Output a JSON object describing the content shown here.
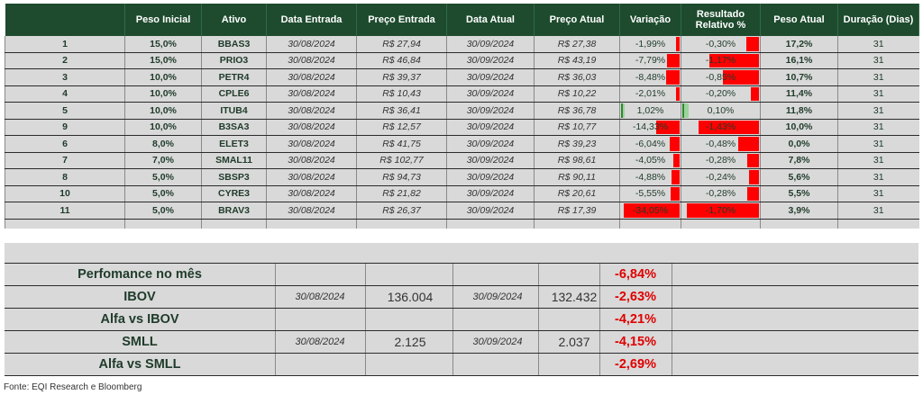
{
  "table": {
    "headers": {
      "idx": "",
      "peso_inicial": "Peso Inicial",
      "ativo": "Ativo",
      "data_entrada": "Data Entrada",
      "preco_entrada": "Preço Entrada",
      "data_atual": "Data Atual",
      "preco_atual": "Preço Atual",
      "variacao": "Variação",
      "resultado": "Resultado Relativo %",
      "peso_atual": "Peso Atual",
      "duracao": "Duração (Dias)"
    },
    "rows": [
      {
        "idx": "1",
        "peso_inicial": "15,0%",
        "ativo": "BBAS3",
        "data_entrada": "30/08/2024",
        "preco_entrada": "R$ 27,94",
        "data_atual": "30/09/2024",
        "preco_atual": "R$ 27,38",
        "variacao": "-1,99%",
        "variacao_value": -1.99,
        "resultado": "-0,30%",
        "resultado_value": -0.3,
        "peso_atual": "17,2%",
        "duracao": "31"
      },
      {
        "idx": "2",
        "peso_inicial": "15,0%",
        "ativo": "PRIO3",
        "data_entrada": "30/08/2024",
        "preco_entrada": "R$ 46,84",
        "data_atual": "30/09/2024",
        "preco_atual": "R$ 43,19",
        "variacao": "-7,79%",
        "variacao_value": -7.79,
        "resultado": "-1,17%",
        "resultado_value": -1.17,
        "peso_atual": "16,1%",
        "duracao": "31"
      },
      {
        "idx": "3",
        "peso_inicial": "10,0%",
        "ativo": "PETR4",
        "data_entrada": "30/08/2024",
        "preco_entrada": "R$ 39,37",
        "data_atual": "30/09/2024",
        "preco_atual": "R$ 36,03",
        "variacao": "-8,48%",
        "variacao_value": -8.48,
        "resultado": "-0,85%",
        "resultado_value": -0.85,
        "peso_atual": "10,7%",
        "duracao": "31"
      },
      {
        "idx": "4",
        "peso_inicial": "10,0%",
        "ativo": "CPLE6",
        "data_entrada": "30/08/2024",
        "preco_entrada": "R$ 10,43",
        "data_atual": "30/09/2024",
        "preco_atual": "R$ 10,22",
        "variacao": "-2,01%",
        "variacao_value": -2.01,
        "resultado": "-0,20%",
        "resultado_value": -0.2,
        "peso_atual": "11,4%",
        "duracao": "31"
      },
      {
        "idx": "5",
        "peso_inicial": "10,0%",
        "ativo": "ITUB4",
        "data_entrada": "30/08/2024",
        "preco_entrada": "R$ 36,41",
        "data_atual": "30/09/2024",
        "preco_atual": "R$ 36,78",
        "variacao": "1,02%",
        "variacao_value": 1.02,
        "resultado": "0,10%",
        "resultado_value": 0.1,
        "peso_atual": "11,8%",
        "duracao": "31"
      },
      {
        "idx": "9",
        "peso_inicial": "10,0%",
        "ativo": "B3SA3",
        "data_entrada": "30/08/2024",
        "preco_entrada": "R$ 12,57",
        "data_atual": "30/09/2024",
        "preco_atual": "R$ 10,77",
        "variacao": "-14,33%",
        "variacao_value": -14.33,
        "resultado": "-1,43%",
        "resultado_value": -1.43,
        "peso_atual": "10,0%",
        "duracao": "31"
      },
      {
        "idx": "6",
        "peso_inicial": "8,0%",
        "ativo": "ELET3",
        "data_entrada": "30/08/2024",
        "preco_entrada": "R$ 41,75",
        "data_atual": "30/09/2024",
        "preco_atual": "R$ 39,23",
        "variacao": "-6,04%",
        "variacao_value": -6.04,
        "resultado": "-0,48%",
        "resultado_value": -0.48,
        "peso_atual": "0,0%",
        "duracao": "31"
      },
      {
        "idx": "7",
        "peso_inicial": "7,0%",
        "ativo": "SMAL11",
        "data_entrada": "30/08/2024",
        "preco_entrada": "R$ 102,77",
        "data_atual": "30/09/2024",
        "preco_atual": "R$ 98,61",
        "variacao": "-4,05%",
        "variacao_value": -4.05,
        "resultado": "-0,28%",
        "resultado_value": -0.28,
        "peso_atual": "7,8%",
        "duracao": "31"
      },
      {
        "idx": "8",
        "peso_inicial": "5,0%",
        "ativo": "SBSP3",
        "data_entrada": "30/08/2024",
        "preco_entrada": "R$ 94,73",
        "data_atual": "30/09/2024",
        "preco_atual": "R$ 90,11",
        "variacao": "-4,88%",
        "variacao_value": -4.88,
        "resultado": "-0,24%",
        "resultado_value": -0.24,
        "peso_atual": "5,6%",
        "duracao": "31"
      },
      {
        "idx": "10",
        "peso_inicial": "5,0%",
        "ativo": "CYRE3",
        "data_entrada": "30/08/2024",
        "preco_entrada": "R$ 21,82",
        "data_atual": "30/09/2024",
        "preco_atual": "R$ 20,61",
        "variacao": "-5,55%",
        "variacao_value": -5.55,
        "resultado": "-0,28%",
        "resultado_value": -0.28,
        "peso_atual": "5,5%",
        "duracao": "31"
      },
      {
        "idx": "11",
        "peso_inicial": "5,0%",
        "ativo": "BRAV3",
        "data_entrada": "30/08/2024",
        "preco_entrada": "R$ 26,37",
        "data_atual": "30/09/2024",
        "preco_atual": "R$ 17,39",
        "variacao": "-34,05%",
        "variacao_value": -34.05,
        "resultado": "-1,70%",
        "resultado_value": -1.7,
        "peso_atual": "3,9%",
        "duracao": "31"
      }
    ]
  },
  "summary": {
    "rows": [
      {
        "label": "Perfomance no mês",
        "date1": "",
        "value1": "",
        "date2": "",
        "value2": "",
        "pct": "-6,84%"
      },
      {
        "label": "IBOV",
        "date1": "30/08/2024",
        "value1": "136.004",
        "date2": "30/09/2024",
        "value2": "132.432",
        "pct": "-2,63%"
      },
      {
        "label": "Alfa vs IBOV",
        "date1": "",
        "value1": "",
        "date2": "",
        "value2": "",
        "pct": "-4,21%"
      },
      {
        "label": "SMLL",
        "date1": "30/08/2024",
        "value1": "2.125",
        "date2": "30/09/2024",
        "value2": "2.037",
        "pct": "-4,15%"
      },
      {
        "label": "Alfa vs SMLL",
        "date1": "",
        "value1": "",
        "date2": "",
        "value2": "",
        "pct": "-2,69%"
      }
    ]
  },
  "source": "Fonte: EQI Research e Bloomberg",
  "colors": {
    "header_bg": "#1e4b2e",
    "row_bg": "#d9d9d9",
    "negative": "#ff0000",
    "positive": "#9bd39b",
    "summary_pct": "#e00000"
  }
}
